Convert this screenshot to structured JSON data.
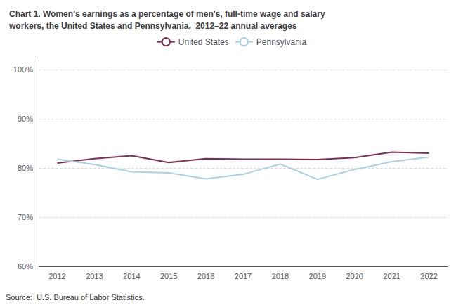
{
  "chart_data": {
    "type": "line",
    "title": "Chart 1. Women's earnings as a percentage of men's, full-time wage and salary\nworkers, the United States and Pennsylvania,  2012–22 annual averages",
    "categories": [
      "2012",
      "2013",
      "2014",
      "2015",
      "2016",
      "2017",
      "2018",
      "2019",
      "2020",
      "2021",
      "2022"
    ],
    "series": [
      {
        "name": "United States",
        "color": "#7b2d52",
        "values": [
          81.0,
          81.9,
          82.5,
          81.1,
          81.9,
          81.8,
          81.8,
          81.7,
          82.1,
          83.2,
          83.0
        ]
      },
      {
        "name": "Pennsylvania",
        "color": "#a8d0e6",
        "values": [
          81.8,
          80.7,
          79.2,
          79.0,
          77.8,
          78.7,
          80.8,
          77.7,
          79.7,
          81.3,
          82.2
        ]
      }
    ],
    "ylim": [
      60,
      102
    ],
    "yticks": [
      {
        "value": 60,
        "label": "60%"
      },
      {
        "value": 70,
        "label": "70%"
      },
      {
        "value": 80,
        "label": "80%"
      },
      {
        "value": 90,
        "label": "90%"
      },
      {
        "value": 100,
        "label": "100%"
      }
    ],
    "grid": true,
    "legend": "top",
    "annotations": [
      "Source:  U.S. Bureau of Labor Statistics."
    ]
  }
}
